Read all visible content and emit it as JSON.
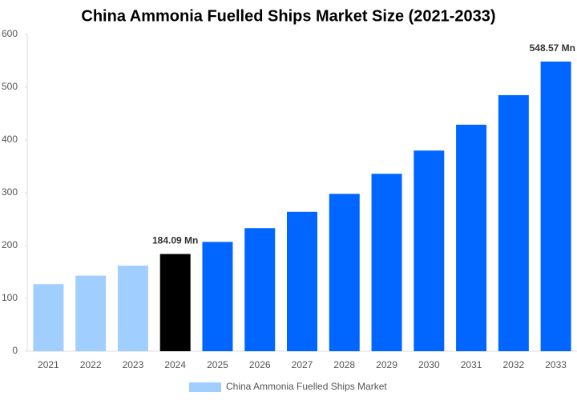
{
  "chart_data": {
    "type": "bar",
    "title": "China Ammonia Fuelled Ships Market Size (2021-2033)",
    "categories": [
      "2021",
      "2022",
      "2023",
      "2024",
      "2025",
      "2026",
      "2027",
      "2028",
      "2029",
      "2030",
      "2031",
      "2032",
      "2033"
    ],
    "series": [
      {
        "name": "China Ammonia Fuelled Ships Market",
        "color": "#a0cfff",
        "values": [
          127,
          143,
          162,
          184.09,
          207,
          233,
          264,
          298,
          336,
          380,
          429,
          485,
          548.57
        ],
        "value_labels": [
          null,
          null,
          null,
          "184.09 Mn",
          null,
          null,
          null,
          null,
          null,
          null,
          null,
          null,
          "548.57 Mn"
        ],
        "colors": [
          "#a0cfff",
          "#a0cfff",
          "#a0cfff",
          "#000000",
          "#0066ff",
          "#0066ff",
          "#0066ff",
          "#0066ff",
          "#0066ff",
          "#0066ff",
          "#0066ff",
          "#0066ff",
          "#0066ff"
        ]
      }
    ],
    "ylim": [
      0,
      600
    ],
    "yticks": [
      0,
      100,
      200,
      300,
      400,
      500,
      600
    ],
    "grid": false
  }
}
